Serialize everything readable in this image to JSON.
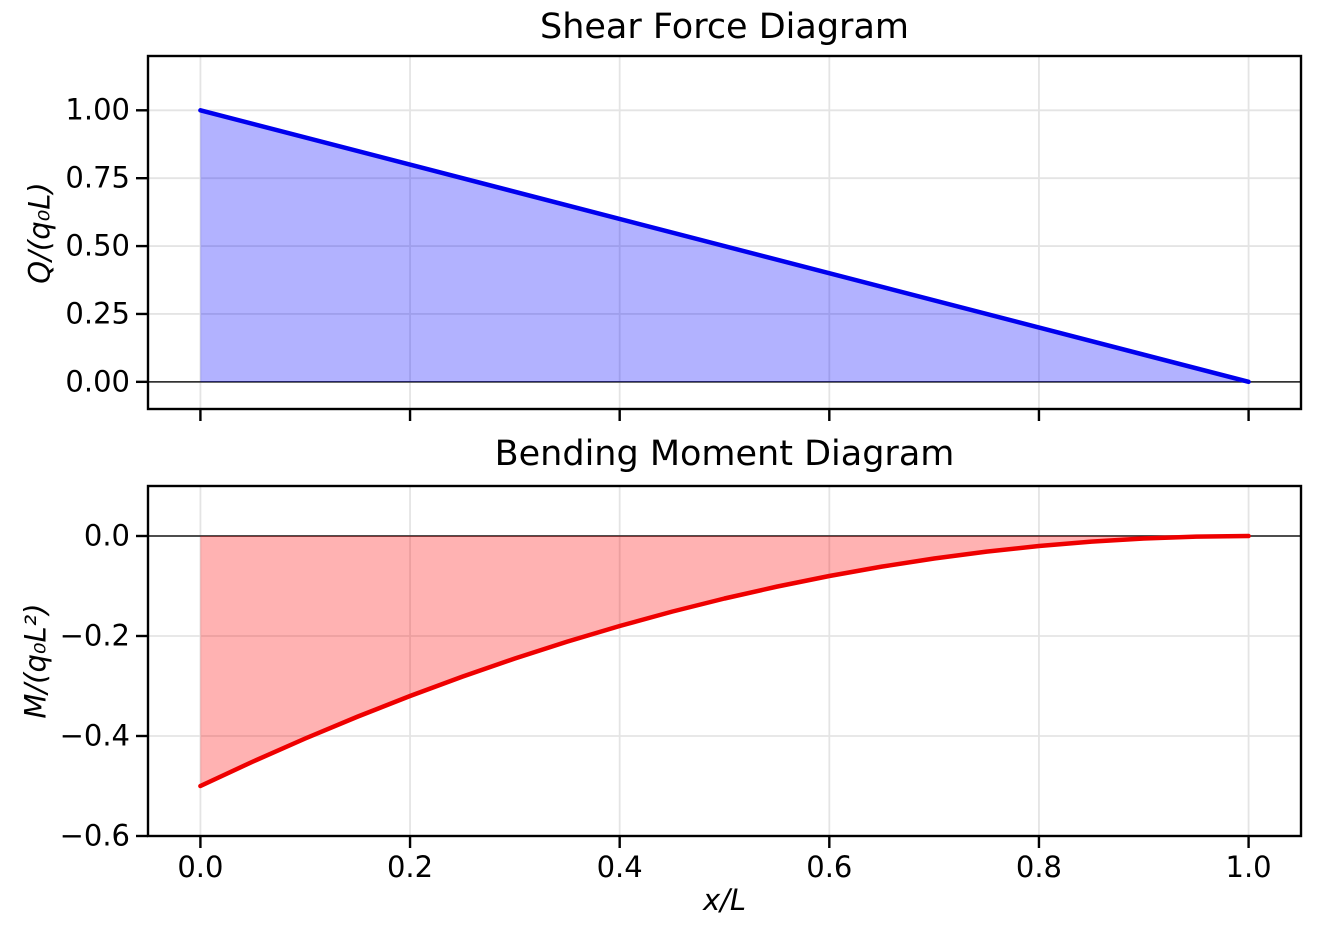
{
  "figure": {
    "background": "#ffffff"
  },
  "chart_data": [
    {
      "type": "area",
      "title": "Shear Force Diagram",
      "ylabel": "Q/(q₀L)",
      "xlabel": "",
      "xlim": [
        -0.05,
        1.05
      ],
      "ylim": [
        -0.1,
        1.2
      ],
      "xticks": [
        0.0,
        0.2,
        0.4,
        0.6,
        0.8,
        1.0
      ],
      "xtick_labels": [],
      "yticks": [
        1.0,
        0.75,
        0.5,
        0.25,
        0.0
      ],
      "ytick_labels": [
        "1.00",
        "0.75",
        "0.50",
        "0.25",
        "0.00"
      ],
      "grid": true,
      "zero_line": true,
      "legend": "none",
      "line_color": "#0000ee",
      "fill_color": "rgba(0,0,255,0.30)",
      "x": [
        0.0,
        1.0
      ],
      "y": [
        1.0,
        0.0
      ]
    },
    {
      "type": "area",
      "title": "Bending Moment Diagram",
      "ylabel": "M/(q₀L²)",
      "xlabel": "x/L",
      "xlim": [
        -0.05,
        1.05
      ],
      "ylim": [
        -0.6,
        0.1
      ],
      "xticks": [
        0.0,
        0.2,
        0.4,
        0.6,
        0.8,
        1.0
      ],
      "xtick_labels": [
        "0.0",
        "0.2",
        "0.4",
        "0.6",
        "0.8",
        "1.0"
      ],
      "yticks": [
        0.0,
        -0.2,
        -0.4,
        -0.6
      ],
      "ytick_labels": [
        "0.0",
        "−0.2",
        "−0.4",
        "−0.6"
      ],
      "grid": true,
      "zero_line": true,
      "legend": "none",
      "line_color": "#ee0000",
      "fill_color": "rgba(255,0,0,0.30)",
      "x": [
        0.0,
        0.05,
        0.1,
        0.15,
        0.2,
        0.25,
        0.3,
        0.35,
        0.4,
        0.45,
        0.5,
        0.55,
        0.6,
        0.65,
        0.7,
        0.75,
        0.8,
        0.85,
        0.9,
        0.95,
        1.0
      ],
      "y": [
        -0.5,
        -0.45125,
        -0.405,
        -0.36125,
        -0.32,
        -0.28125,
        -0.245,
        -0.21125,
        -0.18,
        -0.15125,
        -0.125,
        -0.10125,
        -0.08,
        -0.06125,
        -0.045,
        -0.03125,
        -0.02,
        -0.01125,
        -0.005,
        -0.00125,
        0.0
      ]
    }
  ]
}
